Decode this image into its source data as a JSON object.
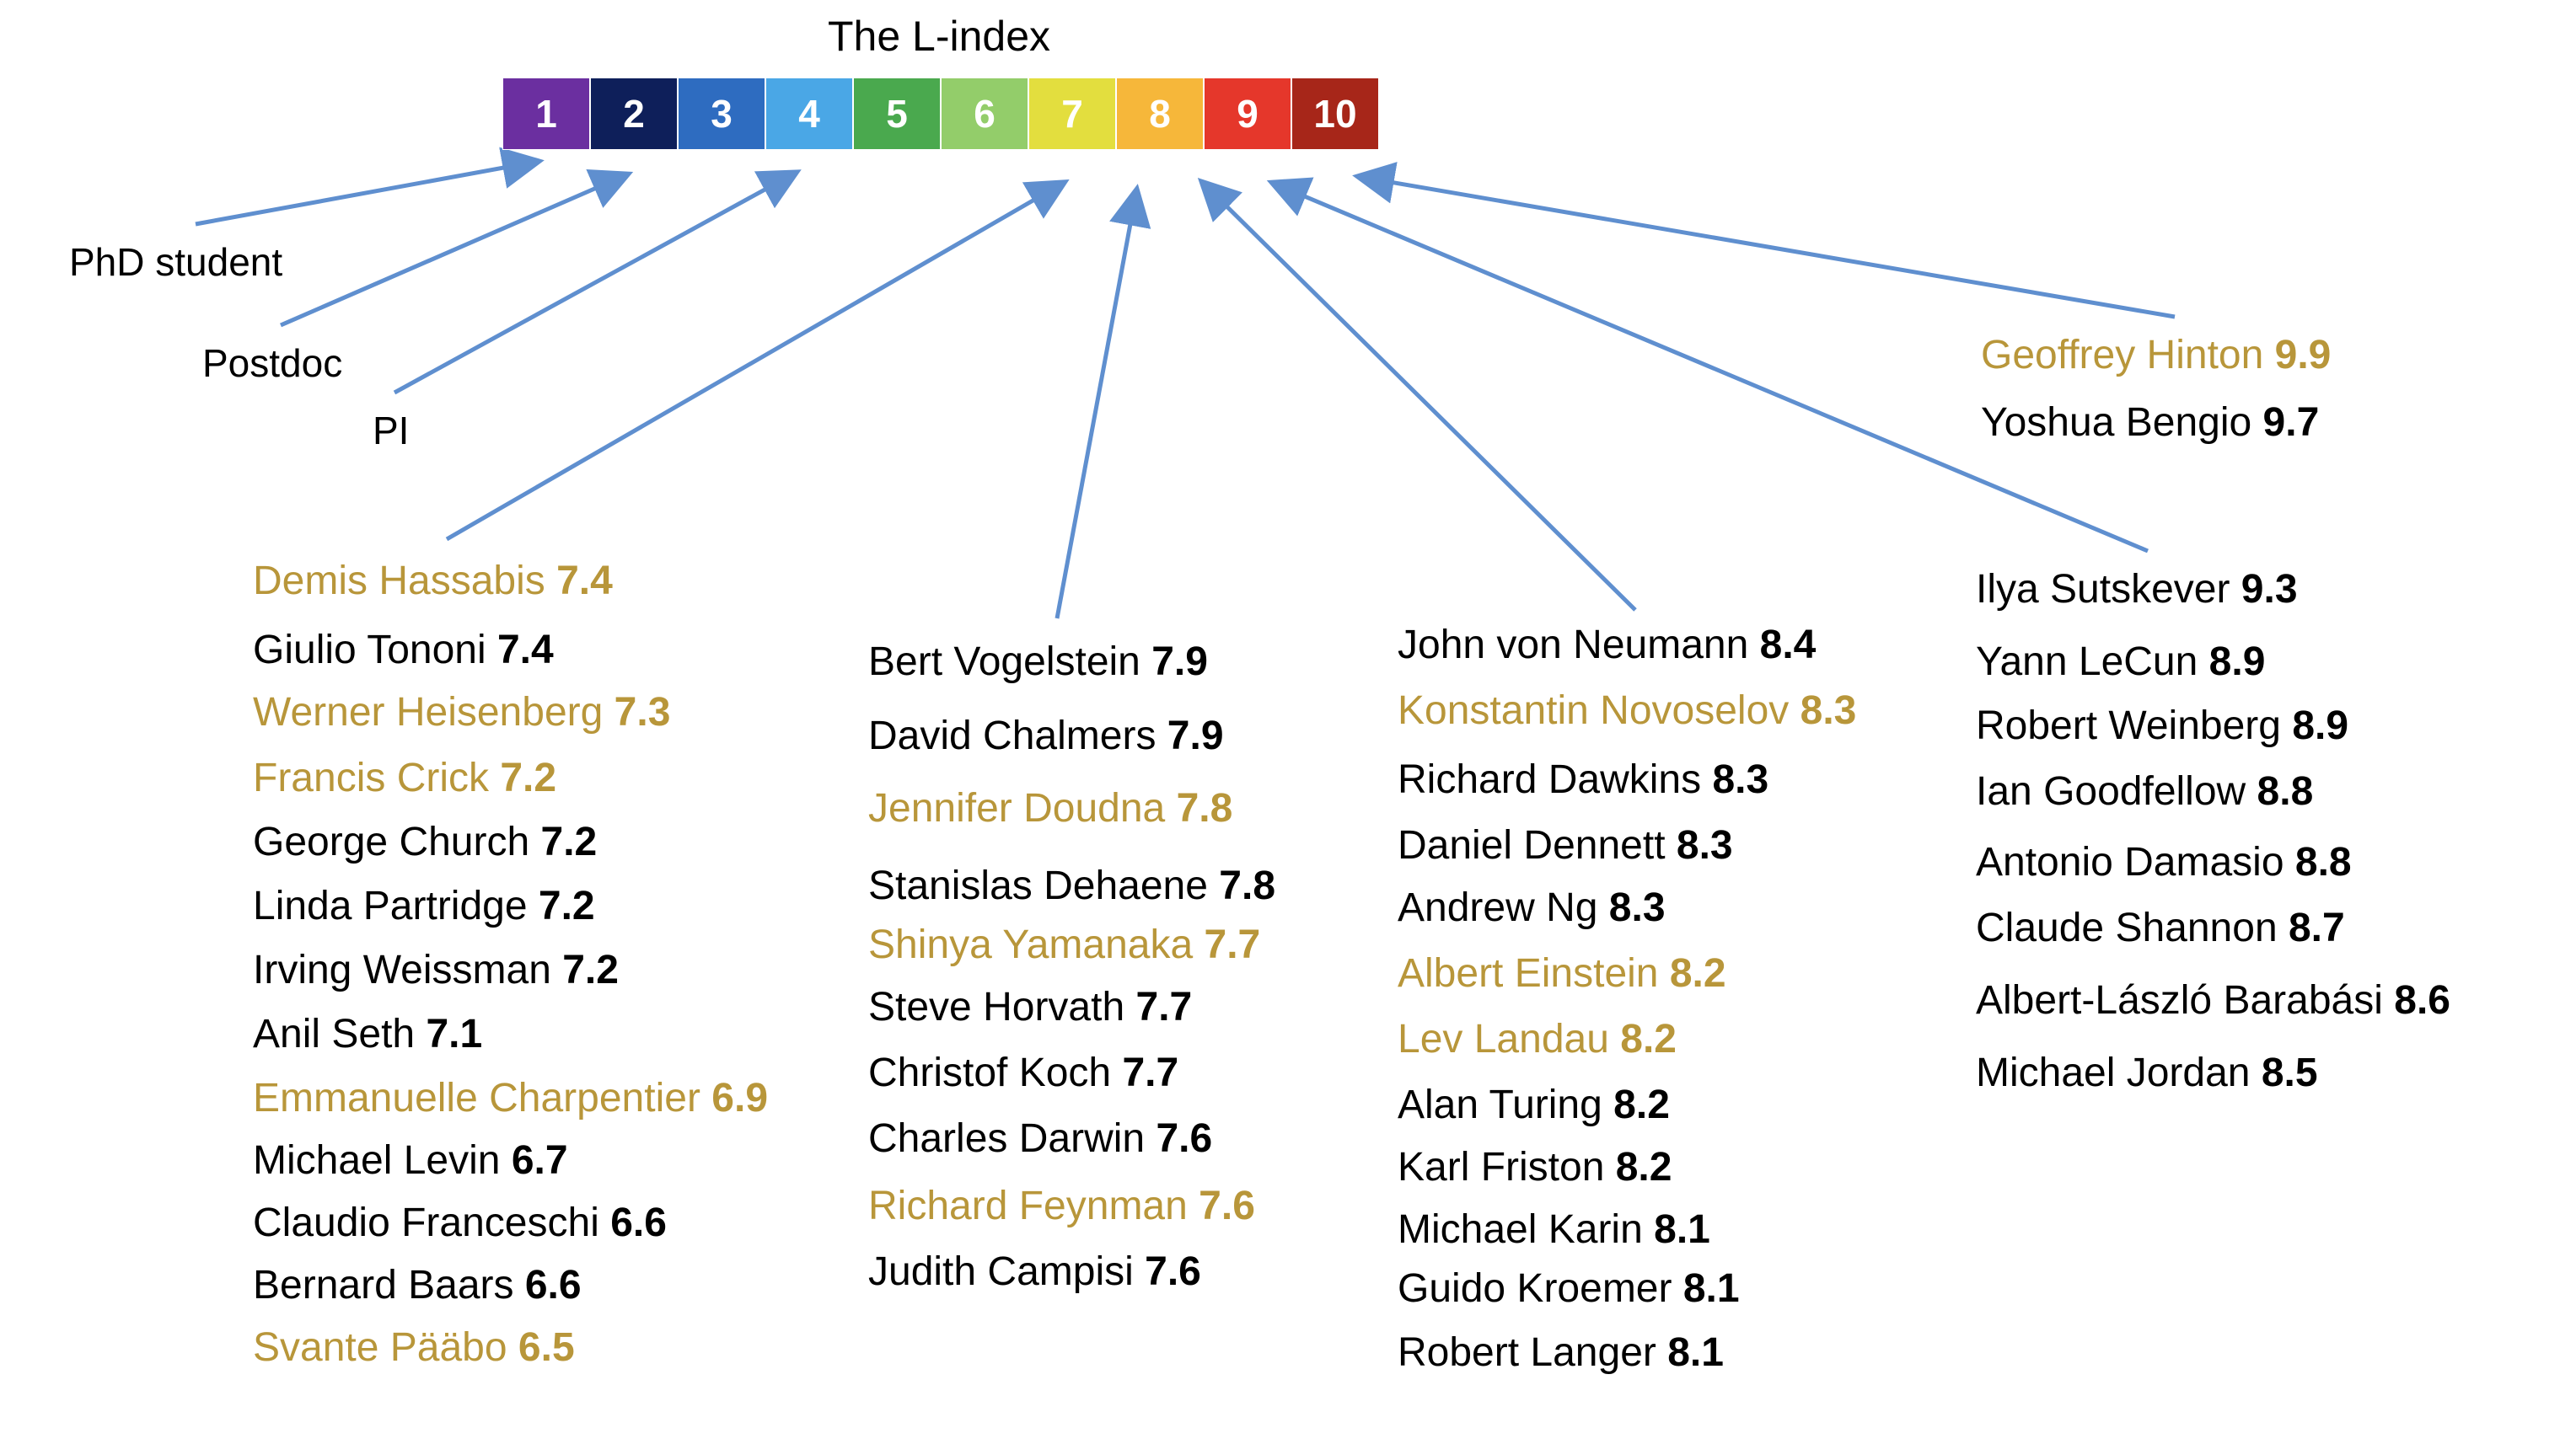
{
  "title": "The L-index",
  "scale": [
    {
      "label": "1",
      "color": "#6b2fa0"
    },
    {
      "label": "2",
      "color": "#0e1f5a"
    },
    {
      "label": "3",
      "color": "#2e6cc0"
    },
    {
      "label": "4",
      "color": "#4aa7e6"
    },
    {
      "label": "5",
      "color": "#4aa94e"
    },
    {
      "label": "6",
      "color": "#93cd6a"
    },
    {
      "label": "7",
      "color": "#e3de3e"
    },
    {
      "label": "8",
      "color": "#f6b73a"
    },
    {
      "label": "9",
      "color": "#e5372b"
    },
    {
      "label": "10",
      "color": "#a72619"
    }
  ],
  "roles": [
    "PhD student",
    "Postdoc",
    "PI"
  ],
  "colors": {
    "highlight": "#b8963a",
    "text": "#000000",
    "arrow": "#5f8fcf"
  },
  "columns": [
    {
      "id": "level-7-low",
      "entries": [
        {
          "name": "Demis Hassabis",
          "score": "7.4",
          "highlight": true
        },
        {
          "name": "Giulio Tononi",
          "score": "7.4",
          "highlight": false
        },
        {
          "name": "Werner Heisenberg",
          "score": "7.3",
          "highlight": true
        },
        {
          "name": "Francis Crick",
          "score": "7.2",
          "highlight": true
        },
        {
          "name": "George Church",
          "score": "7.2",
          "highlight": false
        },
        {
          "name": "Linda Partridge",
          "score": "7.2",
          "highlight": false
        },
        {
          "name": "Irving Weissman",
          "score": "7.2",
          "highlight": false
        },
        {
          "name": "Anil Seth",
          "score": "7.1",
          "highlight": false
        },
        {
          "name": "Emmanuelle Charpentier",
          "score": "6.9",
          "highlight": true
        },
        {
          "name": "Michael Levin",
          "score": "6.7",
          "highlight": false
        },
        {
          "name": "Claudio Franceschi",
          "score": "6.6",
          "highlight": false
        },
        {
          "name": "Bernard Baars",
          "score": "6.6",
          "highlight": false
        },
        {
          "name": "Svante Pääbo",
          "score": "6.5",
          "highlight": true
        }
      ]
    },
    {
      "id": "level-7-high",
      "entries": [
        {
          "name": "Bert Vogelstein",
          "score": "7.9",
          "highlight": false
        },
        {
          "name": "David Chalmers",
          "score": "7.9",
          "highlight": false
        },
        {
          "name": "Jennifer Doudna",
          "score": "7.8",
          "highlight": true
        },
        {
          "name": "Stanislas Dehaene",
          "score": "7.8",
          "highlight": false
        },
        {
          "name": "Shinya Yamanaka",
          "score": "7.7",
          "highlight": true
        },
        {
          "name": "Steve Horvath",
          "score": "7.7",
          "highlight": false
        },
        {
          "name": "Christof Koch",
          "score": "7.7",
          "highlight": false
        },
        {
          "name": "Charles Darwin",
          "score": "7.6",
          "highlight": false
        },
        {
          "name": "Richard Feynman",
          "score": "7.6",
          "highlight": true
        },
        {
          "name": "Judith Campisi",
          "score": "7.6",
          "highlight": false
        }
      ]
    },
    {
      "id": "level-8",
      "entries": [
        {
          "name": "John von Neumann",
          "score": "8.4",
          "highlight": false
        },
        {
          "name": "Konstantin Novoselov",
          "score": "8.3",
          "highlight": true
        },
        {
          "name": "Richard Dawkins",
          "score": "8.3",
          "highlight": false
        },
        {
          "name": "Daniel Dennett",
          "score": "8.3",
          "highlight": false
        },
        {
          "name": "Andrew Ng ",
          "score": "8.3",
          "highlight": false
        },
        {
          "name": "Albert Einstein",
          "score": "8.2",
          "highlight": true
        },
        {
          "name": "Lev Landau",
          "score": "8.2",
          "highlight": true
        },
        {
          "name": "Alan Turing",
          "score": "8.2",
          "highlight": false
        },
        {
          "name": "Karl Friston",
          "score": "8.2",
          "highlight": false
        },
        {
          "name": "Michael Karin",
          "score": "8.1",
          "highlight": false
        },
        {
          "name": "Guido Kroemer",
          "score": "8.1",
          "highlight": false
        },
        {
          "name": "Robert Langer",
          "score": "8.1",
          "highlight": false
        }
      ]
    },
    {
      "id": "level-9",
      "entries": [
        {
          "name": "Ilya Sutskever",
          "score": "9.3",
          "highlight": false
        },
        {
          "name": "Yann LeCun",
          "score": "8.9",
          "highlight": false
        },
        {
          "name": "Robert Weinberg",
          "score": "8.9",
          "highlight": false
        },
        {
          "name": "Ian Goodfellow",
          "score": "8.8",
          "highlight": false
        },
        {
          "name": "Antonio Damasio",
          "score": "8.8",
          "highlight": false
        },
        {
          "name": "Claude Shannon",
          "score": "8.7",
          "highlight": false
        },
        {
          "name": "Albert-László Barabási",
          "score": "8.6",
          "highlight": false
        },
        {
          "name": "Michael Jordan",
          "score": "8.5",
          "highlight": false
        }
      ]
    },
    {
      "id": "level-10",
      "entries": [
        {
          "name": "Geoffrey Hinton",
          "score": "9.9",
          "highlight": true
        },
        {
          "name": "Yoshua Bengio",
          "score": "9.7",
          "highlight": false
        }
      ]
    }
  ]
}
